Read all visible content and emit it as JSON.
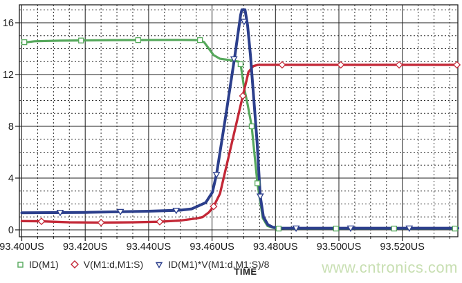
{
  "watermark_text": "www.cntronics.com",
  "axis": {
    "x_title": "TIME",
    "x_tick_labels": [
      "93.400US",
      "93.420US",
      "93.440US",
      "93.460US",
      "93.480US",
      "93.500US",
      "93.520US"
    ],
    "y_tick_labels": [
      "0",
      "4",
      "8",
      "12",
      "16"
    ]
  },
  "legend": {
    "items": [
      {
        "label": "ID(M1)",
        "marker": "square",
        "color": "#56a85c"
      },
      {
        "label": "V(M1:d,M1:S)",
        "marker": "diamond",
        "color": "#c32837"
      },
      {
        "label": "ID(M1)*V(M1:d,M1:S)/8",
        "marker": "triangle-down",
        "color": "#2c3f8c"
      }
    ]
  },
  "chart_data": {
    "type": "line",
    "title": "",
    "xlabel": "TIME",
    "ylabel": "",
    "x_unit": "US",
    "xlim": [
      93.4,
      93.5375
    ],
    "ylim": [
      -0.53,
      17.39
    ],
    "x_major_ticks": [
      93.4,
      93.42,
      93.44,
      93.46,
      93.48,
      93.5,
      93.52
    ],
    "x_minor_step": 0.005,
    "y_major_ticks": [
      0,
      4,
      8,
      12,
      16
    ],
    "y_minor_step": 1,
    "grid": true,
    "legend_position": "bottom-left",
    "colors": {
      "grid_major": "#1c1c1c",
      "grid_minor": "#2a2a2a",
      "frame": "#1c1c1c",
      "tick_text": "#1a1a1a"
    },
    "series": [
      {
        "name": "ID(M1)",
        "color": "#56a85c",
        "marker": "square",
        "line_width": 3.2,
        "points": [
          [
            93.4,
            14.45
          ],
          [
            93.404,
            14.57
          ],
          [
            93.412,
            14.62
          ],
          [
            93.43,
            14.66
          ],
          [
            93.45,
            14.68
          ],
          [
            93.456,
            14.66
          ],
          [
            93.4575,
            14.5
          ],
          [
            93.459,
            14.0
          ],
          [
            93.4605,
            13.5
          ],
          [
            93.4625,
            13.22
          ],
          [
            93.4655,
            13.12
          ],
          [
            93.4685,
            13.0
          ],
          [
            93.469,
            12.8
          ],
          [
            93.4701,
            11.0
          ],
          [
            93.4712,
            9.7
          ],
          [
            93.4725,
            8.0
          ],
          [
            93.4743,
            3.6
          ],
          [
            93.476,
            0.9
          ],
          [
            93.4775,
            0.3
          ],
          [
            93.4795,
            0.14
          ],
          [
            93.483,
            0.1
          ],
          [
            93.5375,
            0.1
          ]
        ],
        "marker_points": [
          [
            93.4008,
            14.5
          ],
          [
            93.4187,
            14.63
          ],
          [
            93.4367,
            14.66
          ],
          [
            93.4562,
            14.66
          ],
          [
            93.469,
            12.8
          ],
          [
            93.4725,
            8.0
          ],
          [
            93.4743,
            3.6
          ],
          [
            93.481,
            0.1
          ],
          [
            93.4991,
            0.1
          ],
          [
            93.5174,
            0.1
          ],
          [
            93.5366,
            0.1
          ]
        ]
      },
      {
        "name": "V(M1:d,M1:S)",
        "color": "#c32837",
        "marker": "diamond",
        "line_width": 3.4,
        "points": [
          [
            93.4,
            0.68
          ],
          [
            93.406,
            0.66
          ],
          [
            93.415,
            0.58
          ],
          [
            93.425,
            0.56
          ],
          [
            93.435,
            0.58
          ],
          [
            93.4435,
            0.63
          ],
          [
            93.45,
            0.72
          ],
          [
            93.455,
            0.88
          ],
          [
            93.457,
            0.98
          ],
          [
            93.459,
            1.35
          ],
          [
            93.4605,
            1.81
          ],
          [
            93.4625,
            2.8
          ],
          [
            93.4697,
            10.35
          ],
          [
            93.4715,
            12.2
          ],
          [
            93.473,
            12.65
          ],
          [
            93.4745,
            12.75
          ],
          [
            93.5375,
            12.75
          ]
        ],
        "marker_points": [
          [
            93.4062,
            0.66
          ],
          [
            93.425,
            0.56
          ],
          [
            93.4435,
            0.63
          ],
          [
            93.4605,
            1.81
          ],
          [
            93.4697,
            10.35
          ],
          [
            93.4821,
            12.75
          ],
          [
            93.5006,
            12.75
          ],
          [
            93.519,
            12.75
          ],
          [
            93.5372,
            12.75
          ]
        ]
      },
      {
        "name": "ID(M1)*V(M1:d,M1:S)/8",
        "color": "#2c3f8c",
        "marker": "triangle-down",
        "line_width": 4,
        "points": [
          [
            93.4,
            1.32
          ],
          [
            93.42,
            1.35
          ],
          [
            93.44,
            1.44
          ],
          [
            93.45,
            1.52
          ],
          [
            93.4536,
            1.62
          ],
          [
            93.458,
            2.1
          ],
          [
            93.4601,
            2.9
          ],
          [
            93.4614,
            4.27
          ],
          [
            93.4642,
            8.64
          ],
          [
            93.4671,
            13.3
          ],
          [
            93.469,
            16.6
          ],
          [
            93.4694,
            17.0
          ],
          [
            93.4704,
            17.0
          ],
          [
            93.4712,
            15.8
          ],
          [
            93.4721,
            13.5
          ],
          [
            93.4742,
            6.8
          ],
          [
            93.4752,
            2.6
          ],
          [
            93.4762,
            1.0
          ],
          [
            93.4776,
            0.4
          ],
          [
            93.4792,
            0.2
          ],
          [
            93.482,
            0.13
          ],
          [
            93.5375,
            0.13
          ]
        ],
        "marker_points": [
          [
            93.4121,
            1.34
          ],
          [
            93.4311,
            1.41
          ],
          [
            93.4487,
            1.5
          ],
          [
            93.4614,
            4.27
          ],
          [
            93.4669,
            13.2
          ],
          [
            93.4701,
            16.1
          ],
          [
            93.4752,
            2.6
          ],
          [
            93.4865,
            0.13
          ],
          [
            93.5037,
            0.13
          ],
          [
            93.5222,
            0.13
          ]
        ]
      }
    ]
  }
}
